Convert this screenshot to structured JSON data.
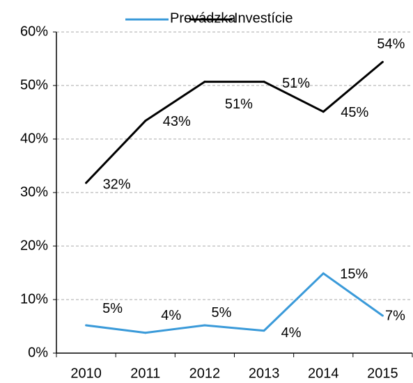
{
  "chart_data": {
    "type": "line",
    "categories": [
      "2010",
      "2011",
      "2012",
      "2013",
      "2014",
      "2015"
    ],
    "series": [
      {
        "name": "Prevádzka",
        "color": "#3a9ad9",
        "values": [
          5.2,
          3.8,
          5.2,
          4.2,
          14.9,
          7.0
        ],
        "value_labels": [
          "5%",
          "4%",
          "5%",
          "4%",
          "15%",
          "7%"
        ]
      },
      {
        "name": "Investície",
        "color": "#000000",
        "values": [
          31.8,
          43.4,
          50.7,
          50.7,
          45.1,
          54.4
        ],
        "value_labels": [
          "32%",
          "43%",
          "51%",
          "51%",
          "45%",
          "54%"
        ]
      }
    ],
    "ylim": [
      0,
      60
    ],
    "yticks": [
      {
        "value": 0,
        "label": "0%"
      },
      {
        "value": 10,
        "label": "10%"
      },
      {
        "value": 20,
        "label": "20%"
      },
      {
        "value": 30,
        "label": "30%"
      },
      {
        "value": 40,
        "label": "40%"
      },
      {
        "value": 50,
        "label": "50%"
      },
      {
        "value": 60,
        "label": "60%"
      }
    ],
    "grid": true,
    "legend": "top"
  }
}
